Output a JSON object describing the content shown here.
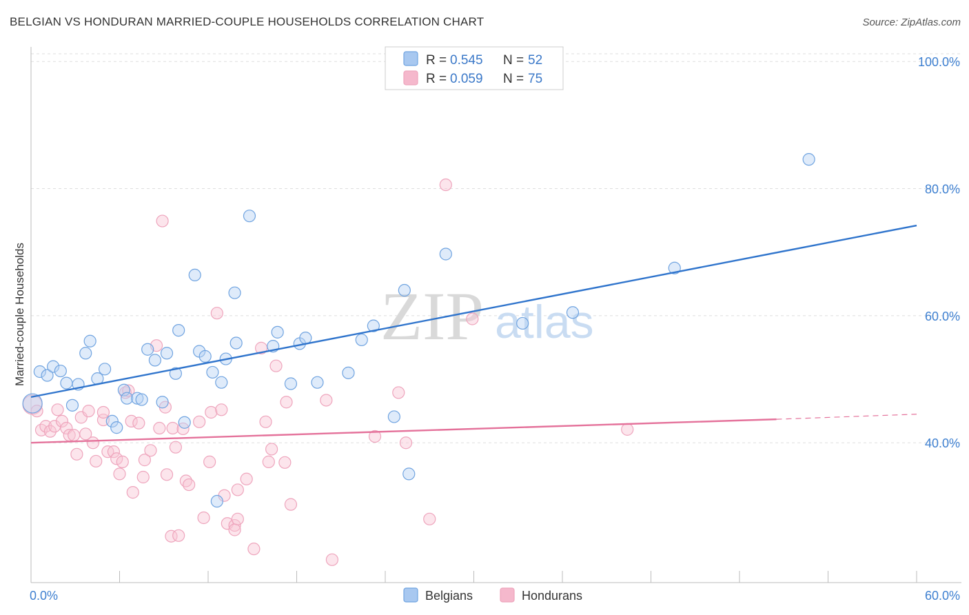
{
  "title": "BELGIAN VS HONDURAN MARRIED-COUPLE HOUSEHOLDS CORRELATION CHART",
  "source": "Source: ZipAtlas.com",
  "watermark": {
    "zip": "ZIP",
    "atlas": "atlas"
  },
  "legend": {
    "r_label": "R =",
    "n_label": "N =",
    "rows": [
      {
        "r": "0.545",
        "n": "52",
        "color": "#a8c8f0"
      },
      {
        "r": "0.059",
        "n": "75",
        "color": "#f5b8cc"
      }
    ]
  },
  "bottom_legend": [
    "Belgians",
    "Hondurans"
  ],
  "chart_data": {
    "type": "scatter",
    "title": "BELGIAN VS HONDURAN MARRIED-COUPLE HOUSEHOLDS CORRELATION CHART",
    "xlabel": "",
    "ylabel": "Married-couple Households",
    "xlim": [
      0,
      60
    ],
    "ylim": [
      18,
      101
    ],
    "x_ticks": [
      {
        "value": 0,
        "label": "0.0%"
      },
      {
        "value": 60,
        "label": "60.0%"
      }
    ],
    "y_ticks": [
      {
        "value": 40,
        "label": "40.0%"
      },
      {
        "value": 60,
        "label": "60.0%"
      },
      {
        "value": 80,
        "label": "80.0%"
      },
      {
        "value": 100,
        "label": "100.0%"
      }
    ],
    "grid": true,
    "legend_position": "top-center",
    "series": [
      {
        "name": "Belgians",
        "color": "#6fa3e0",
        "fill": "#b9d3f3",
        "line_color": "#2f74cc",
        "trend": {
          "x0": 0,
          "y0": 47.2,
          "x1": 60,
          "y1": 74.2
        },
        "points": [
          [
            0.1,
            46.2
          ],
          [
            0.6,
            51.2
          ],
          [
            1.1,
            50.6
          ],
          [
            1.5,
            52.0
          ],
          [
            2.0,
            51.3
          ],
          [
            2.4,
            49.4
          ],
          [
            2.8,
            45.9
          ],
          [
            3.2,
            49.2
          ],
          [
            3.7,
            54.1
          ],
          [
            4.0,
            56.0
          ],
          [
            4.5,
            50.1
          ],
          [
            5.0,
            51.6
          ],
          [
            5.5,
            43.4
          ],
          [
            5.8,
            42.4
          ],
          [
            6.3,
            48.3
          ],
          [
            6.5,
            47.0
          ],
          [
            7.2,
            47.0
          ],
          [
            7.5,
            46.8
          ],
          [
            7.9,
            54.7
          ],
          [
            8.4,
            53.0
          ],
          [
            8.9,
            46.4
          ],
          [
            9.2,
            54.1
          ],
          [
            9.8,
            50.9
          ],
          [
            10.0,
            57.7
          ],
          [
            10.4,
            43.2
          ],
          [
            11.1,
            66.4
          ],
          [
            11.4,
            54.4
          ],
          [
            11.8,
            53.6
          ],
          [
            12.3,
            51.1
          ],
          [
            12.9,
            49.5
          ],
          [
            13.2,
            53.2
          ],
          [
            13.8,
            63.6
          ],
          [
            13.9,
            55.7
          ],
          [
            14.8,
            75.7
          ],
          [
            16.4,
            55.2
          ],
          [
            16.7,
            57.4
          ],
          [
            17.6,
            49.3
          ],
          [
            18.2,
            55.6
          ],
          [
            18.6,
            56.5
          ],
          [
            19.4,
            49.5
          ],
          [
            21.5,
            51.0
          ],
          [
            22.4,
            56.2
          ],
          [
            23.2,
            58.4
          ],
          [
            24.6,
            44.1
          ],
          [
            25.3,
            64.0
          ],
          [
            25.6,
            35.1
          ],
          [
            28.1,
            69.7
          ],
          [
            33.3,
            58.8
          ],
          [
            36.7,
            60.5
          ],
          [
            43.6,
            67.5
          ],
          [
            52.7,
            84.6
          ],
          [
            12.6,
            30.8
          ]
        ]
      },
      {
        "name": "Hondurans",
        "color": "#eea4bc",
        "fill": "#f8c6d5",
        "line_color": "#e4719a",
        "trend": {
          "x0": 0,
          "y0": 40.0,
          "x1": 50.5,
          "y1": 43.7,
          "x2": 60,
          "y2": 44.5
        },
        "points": [
          [
            0.1,
            46.0
          ],
          [
            0.4,
            45.0
          ],
          [
            0.7,
            42.0
          ],
          [
            1.0,
            42.6
          ],
          [
            1.3,
            41.8
          ],
          [
            1.6,
            42.6
          ],
          [
            1.8,
            45.2
          ],
          [
            2.1,
            43.4
          ],
          [
            2.4,
            42.3
          ],
          [
            2.6,
            41.2
          ],
          [
            2.9,
            41.2
          ],
          [
            3.1,
            38.2
          ],
          [
            3.4,
            44.0
          ],
          [
            3.7,
            41.4
          ],
          [
            3.9,
            45.0
          ],
          [
            4.2,
            40.0
          ],
          [
            4.4,
            37.1
          ],
          [
            4.9,
            43.6
          ],
          [
            4.9,
            44.8
          ],
          [
            5.2,
            38.6
          ],
          [
            5.6,
            38.6
          ],
          [
            5.8,
            37.5
          ],
          [
            6.0,
            35.1
          ],
          [
            6.2,
            37.0
          ],
          [
            6.4,
            47.9
          ],
          [
            6.6,
            48.2
          ],
          [
            6.8,
            43.4
          ],
          [
            6.9,
            32.2
          ],
          [
            7.3,
            43.1
          ],
          [
            7.6,
            34.6
          ],
          [
            7.7,
            37.3
          ],
          [
            8.1,
            38.8
          ],
          [
            8.5,
            55.3
          ],
          [
            8.7,
            42.3
          ],
          [
            8.9,
            74.9
          ],
          [
            9.1,
            45.6
          ],
          [
            9.2,
            35.0
          ],
          [
            9.5,
            25.3
          ],
          [
            9.6,
            42.3
          ],
          [
            9.8,
            39.3
          ],
          [
            10.0,
            25.4
          ],
          [
            10.3,
            42.2
          ],
          [
            10.5,
            34.0
          ],
          [
            10.7,
            33.4
          ],
          [
            11.4,
            43.3
          ],
          [
            11.7,
            28.2
          ],
          [
            12.1,
            37.0
          ],
          [
            12.2,
            44.8
          ],
          [
            12.6,
            60.4
          ],
          [
            12.9,
            45.2
          ],
          [
            13.1,
            31.7
          ],
          [
            13.3,
            27.3
          ],
          [
            13.8,
            27.0
          ],
          [
            13.8,
            26.3
          ],
          [
            14.0,
            32.6
          ],
          [
            14.6,
            34.3
          ],
          [
            15.1,
            23.3
          ],
          [
            15.6,
            54.9
          ],
          [
            15.9,
            43.3
          ],
          [
            16.1,
            37.0
          ],
          [
            16.3,
            39.0
          ],
          [
            16.6,
            52.1
          ],
          [
            17.2,
            36.9
          ],
          [
            17.3,
            46.4
          ],
          [
            17.6,
            30.3
          ],
          [
            20.0,
            46.7
          ],
          [
            20.4,
            21.6
          ],
          [
            23.3,
            41.0
          ],
          [
            24.9,
            47.9
          ],
          [
            25.4,
            40.0
          ],
          [
            27.0,
            28.0
          ],
          [
            28.1,
            80.6
          ],
          [
            29.9,
            59.5
          ],
          [
            40.4,
            42.1
          ],
          [
            14.0,
            28.0
          ]
        ]
      }
    ]
  }
}
